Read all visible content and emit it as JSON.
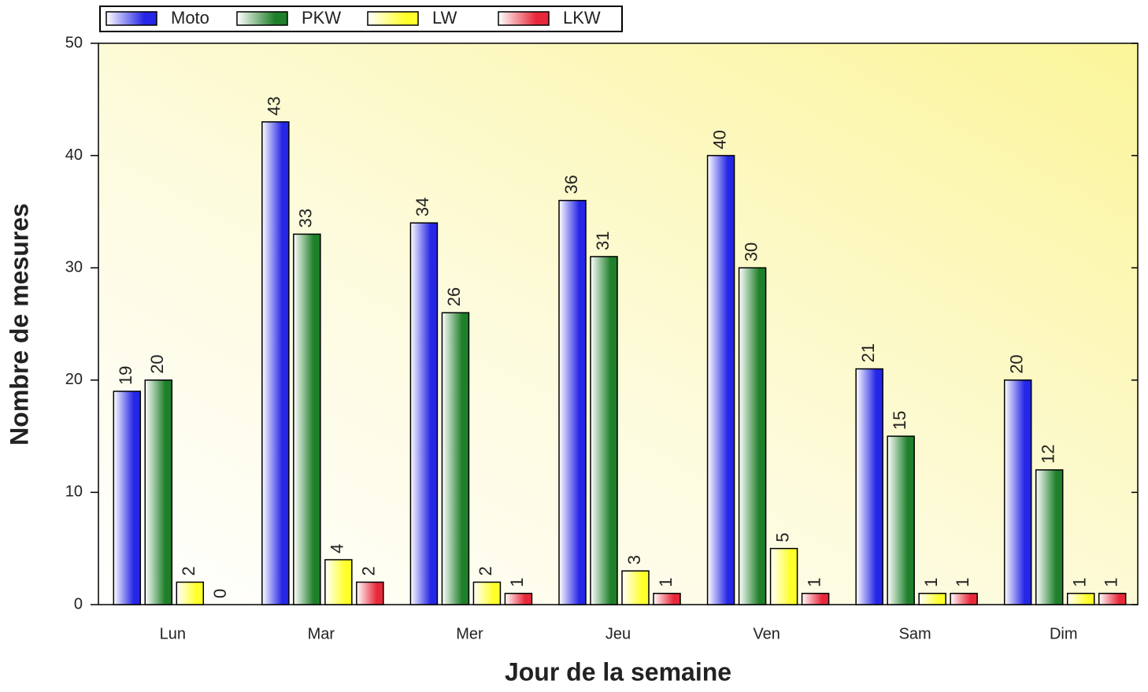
{
  "chart_data": {
    "type": "bar",
    "x_label": "Jour de la semaine",
    "y_label": "Nombre de mesures",
    "categories": [
      "Lun",
      "Mar",
      "Mer",
      "Jeu",
      "Ven",
      "Sam",
      "Dim"
    ],
    "series": [
      {
        "name": "Moto",
        "color": "#2626e6",
        "values": [
          19,
          43,
          34,
          36,
          40,
          21,
          20
        ]
      },
      {
        "name": "PKW",
        "color": "#1f7f2a",
        "values": [
          20,
          33,
          26,
          31,
          30,
          15,
          12
        ]
      },
      {
        "name": "LW",
        "color": "#ffff2a",
        "values": [
          2,
          4,
          2,
          3,
          5,
          1,
          1
        ]
      },
      {
        "name": "LKW",
        "color": "#e8283a",
        "values": [
          0,
          2,
          1,
          1,
          1,
          1,
          1
        ]
      }
    ],
    "ylim": [
      0,
      50
    ],
    "yticks": [
      0,
      10,
      20,
      30,
      40,
      50
    ]
  }
}
